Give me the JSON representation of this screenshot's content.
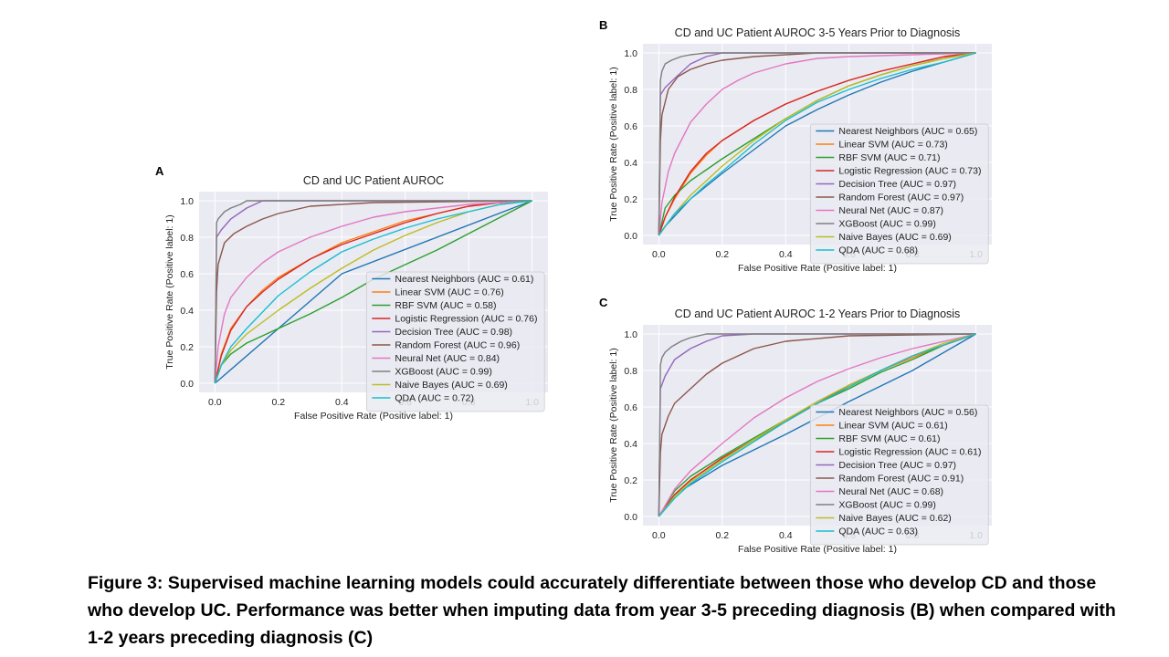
{
  "colors": {
    "Nearest Neighbors": "#1f77b4",
    "Linear SVM": "#ff7f0e",
    "RBF SVM": "#2ca02c",
    "Logistic Regression": "#d62728",
    "Decision Tree": "#9467bd",
    "Random Forest": "#8c564b",
    "Neural Net": "#e377c2",
    "XGBoost": "#7f7f7f",
    "Naive Bayes": "#bcbd22",
    "QDA": "#17becf",
    "plot_background": "#eaeaf2",
    "grid": "#ffffff"
  },
  "caption": "Figure 3: Supervised machine learning models could accurately differentiate between those who develop CD and those who develop UC. Performance was better when imputing data from year 3-5 preceding diagnosis (B) when compared with 1-2 years preceding diagnosis (C)",
  "panels": [
    {
      "letter": "A"
    },
    {
      "letter": "B"
    },
    {
      "letter": "C"
    }
  ],
  "chart_data": [
    {
      "type": "line",
      "title": "CD and UC Patient AUROC",
      "xlabel": "False Positive Rate (Positive label: 1)",
      "ylabel": "True Positive Rate (Positive label: 1)",
      "xlim": [
        -0.05,
        1.05
      ],
      "ylim": [
        -0.05,
        1.05
      ],
      "ticks": [
        0.0,
        0.2,
        0.4,
        0.6,
        0.8,
        1.0
      ],
      "tick_labels": [
        "0.0",
        "0.2",
        "0.4",
        "0.6",
        "0.8",
        "1.0"
      ],
      "grid": true,
      "legend_position": "lower-right",
      "series": [
        {
          "name": "Nearest Neighbors (AUC = 0.61)",
          "model": "Nearest Neighbors",
          "x": [
            0,
            0.4,
            1
          ],
          "y": [
            0,
            0.6,
            1
          ]
        },
        {
          "name": "Linear SVM (AUC = 0.76)",
          "model": "Linear SVM",
          "x": [
            0,
            0.02,
            0.05,
            0.1,
            0.15,
            0.2,
            0.3,
            0.4,
            0.5,
            0.6,
            0.7,
            0.8,
            0.9,
            1
          ],
          "y": [
            0,
            0.16,
            0.3,
            0.42,
            0.51,
            0.58,
            0.68,
            0.77,
            0.83,
            0.89,
            0.93,
            0.97,
            0.99,
            1
          ]
        },
        {
          "name": "RBF SVM (AUC = 0.58)",
          "model": "RBF SVM",
          "x": [
            0,
            0.02,
            0.05,
            0.1,
            0.2,
            0.3,
            0.4,
            0.5,
            0.6,
            0.7,
            0.8,
            0.9,
            1
          ],
          "y": [
            0,
            0.1,
            0.16,
            0.22,
            0.3,
            0.38,
            0.47,
            0.57,
            0.65,
            0.73,
            0.82,
            0.91,
            1
          ]
        },
        {
          "name": "Logistic Regression (AUC = 0.76)",
          "model": "Logistic Regression",
          "x": [
            0,
            0.02,
            0.05,
            0.1,
            0.15,
            0.2,
            0.3,
            0.4,
            0.5,
            0.6,
            0.7,
            0.8,
            0.9,
            1
          ],
          "y": [
            0,
            0.15,
            0.29,
            0.42,
            0.5,
            0.57,
            0.68,
            0.76,
            0.82,
            0.88,
            0.93,
            0.97,
            0.99,
            1
          ]
        },
        {
          "name": "Decision Tree (AUC = 0.98)",
          "model": "Decision Tree",
          "x": [
            0,
            0.005,
            0.02,
            0.05,
            0.1,
            0.15,
            0.25,
            1
          ],
          "y": [
            0,
            0.8,
            0.84,
            0.9,
            0.96,
            1,
            1,
            1
          ]
        },
        {
          "name": "Random Forest (AUC = 0.96)",
          "model": "Random Forest",
          "x": [
            0,
            0.005,
            0.01,
            0.03,
            0.06,
            0.1,
            0.15,
            0.2,
            0.3,
            0.5,
            1
          ],
          "y": [
            0,
            0.5,
            0.65,
            0.77,
            0.82,
            0.86,
            0.9,
            0.93,
            0.97,
            0.99,
            1
          ]
        },
        {
          "name": "Neural Net (AUC = 0.84)",
          "model": "Neural Net",
          "x": [
            0,
            0.01,
            0.03,
            0.05,
            0.1,
            0.15,
            0.2,
            0.3,
            0.4,
            0.5,
            0.6,
            0.7,
            0.8,
            0.9,
            1
          ],
          "y": [
            0,
            0.2,
            0.38,
            0.47,
            0.58,
            0.66,
            0.72,
            0.8,
            0.86,
            0.91,
            0.94,
            0.96,
            0.98,
            0.99,
            1
          ]
        },
        {
          "name": "XGBoost (AUC = 0.99)",
          "model": "XGBoost",
          "x": [
            0,
            0.005,
            0.01,
            0.03,
            0.05,
            0.08,
            0.1,
            1
          ],
          "y": [
            0,
            0.88,
            0.9,
            0.94,
            0.96,
            0.98,
            1,
            1
          ]
        },
        {
          "name": "Naive Bayes (AUC = 0.69)",
          "model": "Naive Bayes",
          "x": [
            0,
            0.02,
            0.05,
            0.1,
            0.2,
            0.3,
            0.4,
            0.5,
            0.6,
            0.7,
            0.8,
            0.9,
            1
          ],
          "y": [
            0,
            0.1,
            0.18,
            0.27,
            0.4,
            0.52,
            0.63,
            0.73,
            0.81,
            0.88,
            0.94,
            0.98,
            1
          ]
        },
        {
          "name": "QDA (AUC = 0.72)",
          "model": "QDA",
          "x": [
            0,
            0.02,
            0.05,
            0.1,
            0.2,
            0.3,
            0.4,
            0.5,
            0.6,
            0.7,
            0.8,
            0.9,
            1
          ],
          "y": [
            0,
            0.1,
            0.2,
            0.3,
            0.48,
            0.61,
            0.72,
            0.79,
            0.85,
            0.9,
            0.94,
            0.98,
            1
          ]
        }
      ]
    },
    {
      "type": "line",
      "title": "CD and UC Patient AUROC 3-5 Years Prior to Diagnosis",
      "xlabel": "False Positive Rate (Positive label: 1)",
      "ylabel": "True Positive Rate (Positive label: 1)",
      "xlim": [
        -0.05,
        1.05
      ],
      "ylim": [
        -0.05,
        1.05
      ],
      "ticks": [
        0.0,
        0.2,
        0.4,
        0.6,
        0.8,
        1.0
      ],
      "tick_labels": [
        "0.0",
        "0.2",
        "0.4",
        "0.6",
        "0.8",
        "1.0"
      ],
      "grid": true,
      "legend_position": "lower-right",
      "series": [
        {
          "name": "Nearest Neighbors (AUC = 0.65)",
          "model": "Nearest Neighbors",
          "x": [
            0,
            0.02,
            0.1,
            0.2,
            0.3,
            0.4,
            0.5,
            0.6,
            0.7,
            0.8,
            0.9,
            1
          ],
          "y": [
            0,
            0.05,
            0.2,
            0.34,
            0.47,
            0.6,
            0.69,
            0.77,
            0.84,
            0.9,
            0.95,
            1
          ]
        },
        {
          "name": "Linear SVM (AUC = 0.73)",
          "model": "Linear SVM",
          "x": [
            0,
            0.02,
            0.05,
            0.1,
            0.15,
            0.2,
            0.3,
            0.4,
            0.5,
            0.6,
            0.7,
            0.8,
            0.9,
            1
          ],
          "y": [
            0,
            0.1,
            0.2,
            0.34,
            0.44,
            0.52,
            0.63,
            0.72,
            0.79,
            0.85,
            0.9,
            0.94,
            0.98,
            1
          ]
        },
        {
          "name": "RBF SVM (AUC = 0.71)",
          "model": "RBF SVM",
          "x": [
            0,
            0.02,
            0.05,
            0.1,
            0.15,
            0.2,
            0.3,
            0.4,
            0.5,
            0.6,
            0.7,
            0.8,
            0.9,
            1
          ],
          "y": [
            0,
            0.15,
            0.22,
            0.3,
            0.36,
            0.42,
            0.53,
            0.64,
            0.74,
            0.82,
            0.88,
            0.93,
            0.97,
            1
          ]
        },
        {
          "name": "Logistic Regression (AUC = 0.73)",
          "model": "Logistic Regression",
          "x": [
            0,
            0.02,
            0.05,
            0.1,
            0.15,
            0.2,
            0.3,
            0.4,
            0.5,
            0.6,
            0.7,
            0.8,
            0.9,
            1
          ],
          "y": [
            0,
            0.1,
            0.21,
            0.35,
            0.45,
            0.52,
            0.63,
            0.72,
            0.79,
            0.85,
            0.9,
            0.94,
            0.98,
            1
          ]
        },
        {
          "name": "Decision Tree (AUC = 0.97)",
          "model": "Decision Tree",
          "x": [
            0,
            0.005,
            0.02,
            0.05,
            0.1,
            0.15,
            0.2,
            0.3,
            1
          ],
          "y": [
            0,
            0.77,
            0.81,
            0.86,
            0.94,
            0.98,
            1,
            1,
            1
          ]
        },
        {
          "name": "Random Forest (AUC = 0.97)",
          "model": "Random Forest",
          "x": [
            0,
            0.005,
            0.01,
            0.03,
            0.06,
            0.1,
            0.15,
            0.2,
            0.3,
            0.5,
            1
          ],
          "y": [
            0,
            0.52,
            0.66,
            0.8,
            0.87,
            0.91,
            0.94,
            0.96,
            0.98,
            1,
            1
          ]
        },
        {
          "name": "Neural Net (AUC = 0.87)",
          "model": "Neural Net",
          "x": [
            0,
            0.01,
            0.03,
            0.05,
            0.1,
            0.15,
            0.2,
            0.25,
            0.3,
            0.4,
            0.5,
            0.6,
            0.8,
            1
          ],
          "y": [
            0,
            0.18,
            0.35,
            0.45,
            0.62,
            0.72,
            0.8,
            0.85,
            0.89,
            0.94,
            0.97,
            0.98,
            0.99,
            1
          ]
        },
        {
          "name": "XGBoost (AUC = 0.99)",
          "model": "XGBoost",
          "x": [
            0,
            0.005,
            0.01,
            0.02,
            0.04,
            0.07,
            0.1,
            0.15,
            1
          ],
          "y": [
            0,
            0.85,
            0.9,
            0.94,
            0.96,
            0.98,
            0.99,
            1,
            1
          ]
        },
        {
          "name": "Naive Bayes (AUC = 0.69)",
          "model": "Naive Bayes",
          "x": [
            0,
            0.05,
            0.1,
            0.15,
            0.2,
            0.3,
            0.4,
            0.5,
            0.6,
            0.7,
            0.8,
            0.9,
            1
          ],
          "y": [
            0,
            0.12,
            0.22,
            0.3,
            0.38,
            0.52,
            0.64,
            0.74,
            0.82,
            0.88,
            0.93,
            0.97,
            1
          ]
        },
        {
          "name": "QDA (AUC = 0.68)",
          "model": "QDA",
          "x": [
            0,
            0.02,
            0.05,
            0.1,
            0.15,
            0.2,
            0.3,
            0.4,
            0.5,
            0.6,
            0.7,
            0.8,
            0.9,
            1
          ],
          "y": [
            0,
            0.05,
            0.12,
            0.2,
            0.28,
            0.35,
            0.5,
            0.63,
            0.73,
            0.8,
            0.86,
            0.91,
            0.95,
            1
          ]
        }
      ]
    },
    {
      "type": "line",
      "title": "CD and UC Patient AUROC 1-2 Years Prior to Diagnosis",
      "xlabel": "False Positive Rate (Positive label: 1)",
      "ylabel": "True Positive Rate (Positive label: 1)",
      "xlim": [
        -0.05,
        1.05
      ],
      "ylim": [
        -0.05,
        1.05
      ],
      "ticks": [
        0.0,
        0.2,
        0.4,
        0.6,
        0.8,
        1.0
      ],
      "tick_labels": [
        "0.0",
        "0.2",
        "0.4",
        "0.6",
        "0.8",
        "1.0"
      ],
      "grid": true,
      "legend_position": "lower-right",
      "series": [
        {
          "name": "Nearest Neighbors (AUC = 0.56)",
          "model": "Nearest Neighbors",
          "x": [
            0,
            0.05,
            0.2,
            0.4,
            0.6,
            0.8,
            1
          ],
          "y": [
            0,
            0.12,
            0.28,
            0.45,
            0.63,
            0.8,
            1
          ]
        },
        {
          "name": "Linear SVM (AUC = 0.61)",
          "model": "Linear SVM",
          "x": [
            0,
            0.05,
            0.1,
            0.2,
            0.3,
            0.4,
            0.5,
            0.6,
            0.7,
            0.8,
            0.9,
            1
          ],
          "y": [
            0,
            0.12,
            0.2,
            0.32,
            0.42,
            0.52,
            0.62,
            0.71,
            0.8,
            0.87,
            0.94,
            1
          ]
        },
        {
          "name": "RBF SVM (AUC = 0.61)",
          "model": "RBF SVM",
          "x": [
            0,
            0.05,
            0.1,
            0.2,
            0.3,
            0.4,
            0.5,
            0.6,
            0.7,
            0.8,
            0.9,
            1
          ],
          "y": [
            0,
            0.14,
            0.22,
            0.33,
            0.43,
            0.53,
            0.62,
            0.7,
            0.79,
            0.86,
            0.94,
            1
          ]
        },
        {
          "name": "Logistic Regression (AUC = 0.61)",
          "model": "Logistic Regression",
          "x": [
            0,
            0.05,
            0.1,
            0.2,
            0.3,
            0.4,
            0.5,
            0.6,
            0.7,
            0.8,
            0.9,
            1
          ],
          "y": [
            0,
            0.12,
            0.2,
            0.32,
            0.42,
            0.52,
            0.62,
            0.72,
            0.8,
            0.88,
            0.94,
            1
          ]
        },
        {
          "name": "Decision Tree (AUC = 0.97)",
          "model": "Decision Tree",
          "x": [
            0,
            0.005,
            0.02,
            0.05,
            0.1,
            0.15,
            0.2,
            0.3,
            1
          ],
          "y": [
            0,
            0.7,
            0.77,
            0.86,
            0.92,
            0.96,
            0.99,
            1,
            1
          ]
        },
        {
          "name": "Random Forest (AUC = 0.91)",
          "model": "Random Forest",
          "x": [
            0,
            0.005,
            0.01,
            0.03,
            0.05,
            0.1,
            0.15,
            0.2,
            0.25,
            0.3,
            0.4,
            0.6,
            1
          ],
          "y": [
            0,
            0.35,
            0.45,
            0.55,
            0.62,
            0.7,
            0.78,
            0.84,
            0.88,
            0.92,
            0.96,
            0.99,
            1
          ]
        },
        {
          "name": "Neural Net (AUC = 0.68)",
          "model": "Neural Net",
          "x": [
            0,
            0.05,
            0.1,
            0.2,
            0.3,
            0.4,
            0.5,
            0.6,
            0.7,
            0.8,
            0.9,
            1
          ],
          "y": [
            0,
            0.15,
            0.25,
            0.4,
            0.54,
            0.65,
            0.74,
            0.81,
            0.87,
            0.92,
            0.96,
            1
          ]
        },
        {
          "name": "XGBoost (AUC = 0.99)",
          "model": "XGBoost",
          "x": [
            0,
            0.005,
            0.01,
            0.02,
            0.04,
            0.07,
            0.1,
            0.15,
            1
          ],
          "y": [
            0,
            0.83,
            0.87,
            0.9,
            0.93,
            0.96,
            0.98,
            1,
            1
          ]
        },
        {
          "name": "Naive Bayes (AUC = 0.62)",
          "model": "Naive Bayes",
          "x": [
            0,
            0.05,
            0.1,
            0.2,
            0.3,
            0.4,
            0.5,
            0.6,
            0.7,
            0.8,
            0.9,
            1
          ],
          "y": [
            0,
            0.11,
            0.19,
            0.31,
            0.42,
            0.53,
            0.63,
            0.72,
            0.8,
            0.88,
            0.95,
            1
          ]
        },
        {
          "name": "QDA (AUC = 0.63)",
          "model": "QDA",
          "x": [
            0,
            0.05,
            0.1,
            0.2,
            0.3,
            0.4,
            0.5,
            0.6,
            0.7,
            0.8,
            0.9,
            1
          ],
          "y": [
            0,
            0.1,
            0.18,
            0.3,
            0.41,
            0.52,
            0.62,
            0.71,
            0.8,
            0.88,
            0.94,
            1
          ]
        }
      ]
    }
  ]
}
